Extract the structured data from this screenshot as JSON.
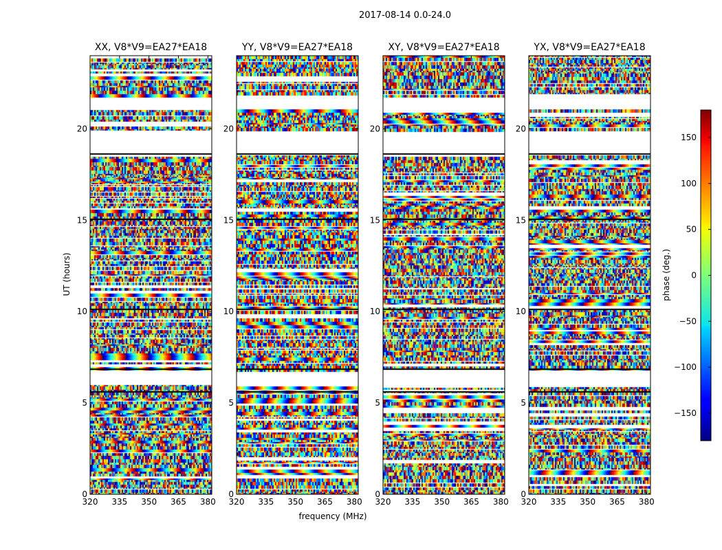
{
  "figure": {
    "title": "2017-08-14 0.0-24.0",
    "xlabel": "frequency (MHz)",
    "ylabel": "UT (hours)"
  },
  "chart_data": {
    "type": "heatmap",
    "title": "2017-08-14 0.0-24.0",
    "xlabel": "frequency (MHz)",
    "ylabel": "UT (hours)",
    "xlim": [
      320,
      382
    ],
    "ylim": [
      0,
      24
    ],
    "x_ticks": [
      320,
      335,
      350,
      365,
      380
    ],
    "y_ticks": [
      0,
      5,
      10,
      15,
      20
    ],
    "colormap": "jet",
    "panels": [
      {
        "title": "XX, V8*V9=EA27*EA18"
      },
      {
        "title": "YY, V8*V9=EA27*EA18"
      },
      {
        "title": "XY, V8*V9=EA27*EA18"
      },
      {
        "title": "YX, V8*V9=EA27*EA18"
      }
    ],
    "colorbar": {
      "label": "phase (deg.)",
      "range": [
        -180,
        180
      ],
      "ticks": [
        -150,
        -100,
        -50,
        0,
        50,
        100,
        150
      ]
    },
    "flagged_ut_ranges": [
      [
        18.6,
        19.9
      ],
      [
        6.0,
        6.85
      ],
      [
        21.1,
        21.85
      ]
    ],
    "black_rule_ut": [
      5.65,
      6.9,
      10.15,
      15.1,
      18.65
    ]
  }
}
